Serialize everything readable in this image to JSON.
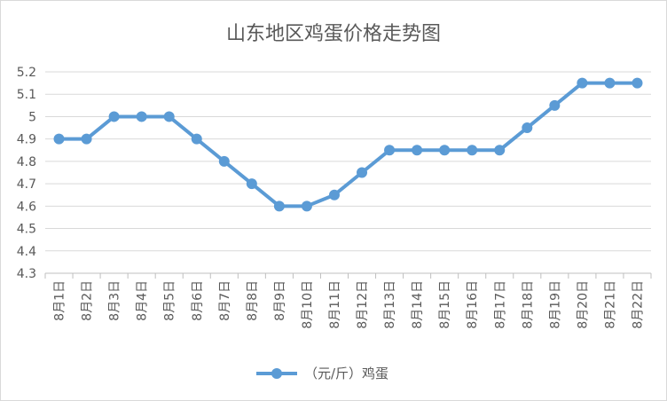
{
  "chart_data": {
    "type": "line",
    "title": "山东地区鸡蛋价格走势图",
    "categories": [
      "8月1日",
      "8月2日",
      "8月3日",
      "8月4日",
      "8月5日",
      "8月6日",
      "8月7日",
      "8月8日",
      "8月9日",
      "8月10日",
      "8月11日",
      "8月12日",
      "8月13日",
      "8月14日",
      "8月15日",
      "8月16日",
      "8月17日",
      "8月18日",
      "8月19日",
      "8月20日",
      "8月21日",
      "8月22日"
    ],
    "series": [
      {
        "name": "（元/斤）鸡蛋",
        "values": [
          4.9,
          4.9,
          5.0,
          5.0,
          5.0,
          4.9,
          4.8,
          4.7,
          4.6,
          4.6,
          4.65,
          4.75,
          4.85,
          4.85,
          4.85,
          4.85,
          4.85,
          4.95,
          5.05,
          5.15,
          5.15,
          5.15
        ]
      }
    ],
    "yticks": [
      "4.3",
      "4.4",
      "4.5",
      "4.6",
      "4.7",
      "4.8",
      "4.9",
      "5",
      "5.1",
      "5.2"
    ],
    "ylim": [
      4.3,
      5.2
    ],
    "xlabel": "",
    "ylabel": "",
    "grid": true,
    "legend_position": "bottom",
    "color": "#5b9bd5"
  }
}
